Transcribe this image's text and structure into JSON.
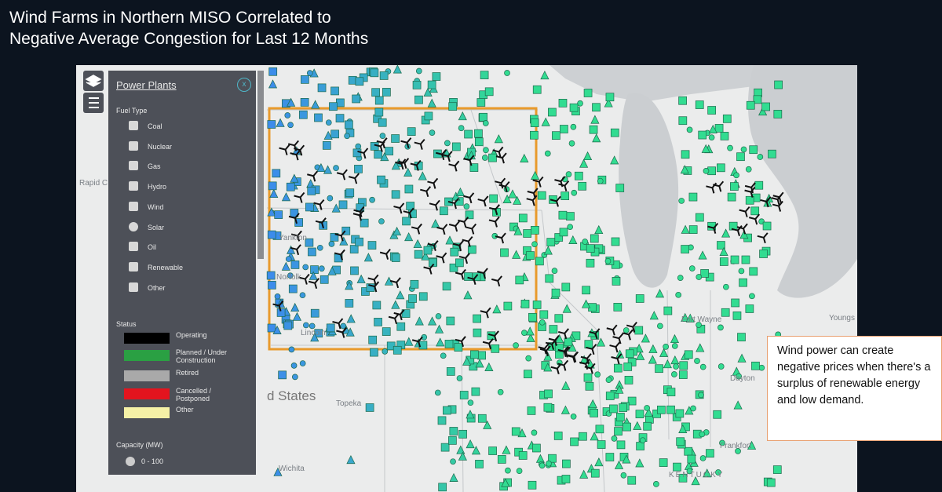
{
  "header": {
    "title_lines": [
      "Wind Farms in Northern MISO Correlated to",
      "Negative Average Congestion for Last 12 Months"
    ]
  },
  "legend": {
    "title": "Power Plants",
    "fuel_heading": "Fuel Type",
    "fuel_types": [
      "Coal",
      "Nuclear",
      "Gas",
      "Hydro",
      "Wind",
      "Solar",
      "Oil",
      "Renewable",
      "Other"
    ],
    "status_heading": "Status",
    "statuses": [
      {
        "label": "Operating",
        "color": "#000000"
      },
      {
        "label": "Planned / Under Construction",
        "color": "#2aa043"
      },
      {
        "label": "Retired",
        "color": "#a9a9a9"
      },
      {
        "label": "Cancelled / Postponed",
        "color": "#e3141e"
      },
      {
        "label": "Other",
        "color": "#f5f1a6"
      }
    ],
    "capacity_heading": "Capacity (MW)",
    "capacity_items": [
      "0 - 100"
    ]
  },
  "map_labels": [
    "Rapid C",
    "Yankton",
    "Norfolk",
    "Lincoln",
    "d States",
    "Topeka",
    "Wichita",
    "Fort Wayne",
    "Dayton",
    "Frankfort",
    "KENTUCKY",
    "Youngs"
  ],
  "callout": {
    "text": "Wind power can create negative prices when there's a surplus of renewable energy and low demand."
  }
}
